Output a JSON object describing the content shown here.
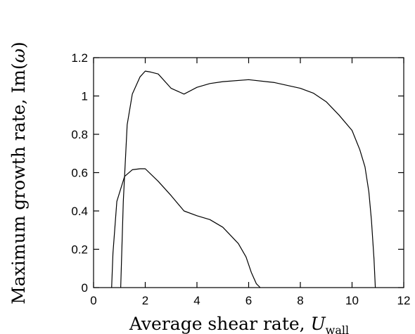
{
  "chart_data": {
    "type": "line",
    "title": "",
    "xlabel": {
      "main": "Average shear rate, ",
      "var": "U",
      "sub": "wall"
    },
    "ylabel": {
      "main": "Maximum growth rate, Im(",
      "var": "ω",
      "close": ")"
    },
    "xlim": [
      0,
      12
    ],
    "ylim": [
      0,
      1.2
    ],
    "xticks": [
      0,
      2,
      4,
      6,
      8,
      10,
      12
    ],
    "yticks": [
      0,
      0.2,
      0.4,
      0.6,
      0.8,
      1,
      1.2
    ],
    "xtick_labels": [
      "0",
      "2",
      "4",
      "6",
      "8",
      "10",
      "12"
    ],
    "ytick_labels": [
      "0",
      "0.2",
      "0.4",
      "0.6",
      "0.8",
      "1",
      "1.2"
    ],
    "grid": false,
    "legend": "none",
    "series": [
      {
        "x": [
          1.05,
          1.15,
          1.3,
          1.5,
          1.8,
          2.0,
          2.2,
          2.5,
          3.0,
          3.5,
          4.0,
          4.5,
          5.0,
          6.0,
          7.0,
          8.0,
          8.5,
          9.0,
          9.5,
          10.0,
          10.3,
          10.5,
          10.65,
          10.75,
          10.85,
          10.9
        ],
        "y": [
          0.0,
          0.45,
          0.85,
          1.01,
          1.1,
          1.13,
          1.125,
          1.115,
          1.04,
          1.01,
          1.045,
          1.065,
          1.075,
          1.085,
          1.07,
          1.04,
          1.015,
          0.97,
          0.9,
          0.82,
          0.72,
          0.63,
          0.5,
          0.35,
          0.15,
          0.0
        ]
      },
      {
        "x": [
          0.7,
          0.75,
          0.9,
          1.2,
          1.5,
          1.8,
          2.0,
          2.5,
          3.0,
          3.5,
          4.0,
          4.5,
          5.0,
          5.6,
          5.9,
          6.1,
          6.3,
          6.45
        ],
        "y": [
          0.0,
          0.18,
          0.45,
          0.58,
          0.615,
          0.62,
          0.62,
          0.555,
          0.48,
          0.4,
          0.375,
          0.355,
          0.315,
          0.23,
          0.16,
          0.08,
          0.02,
          0.0
        ]
      }
    ]
  }
}
